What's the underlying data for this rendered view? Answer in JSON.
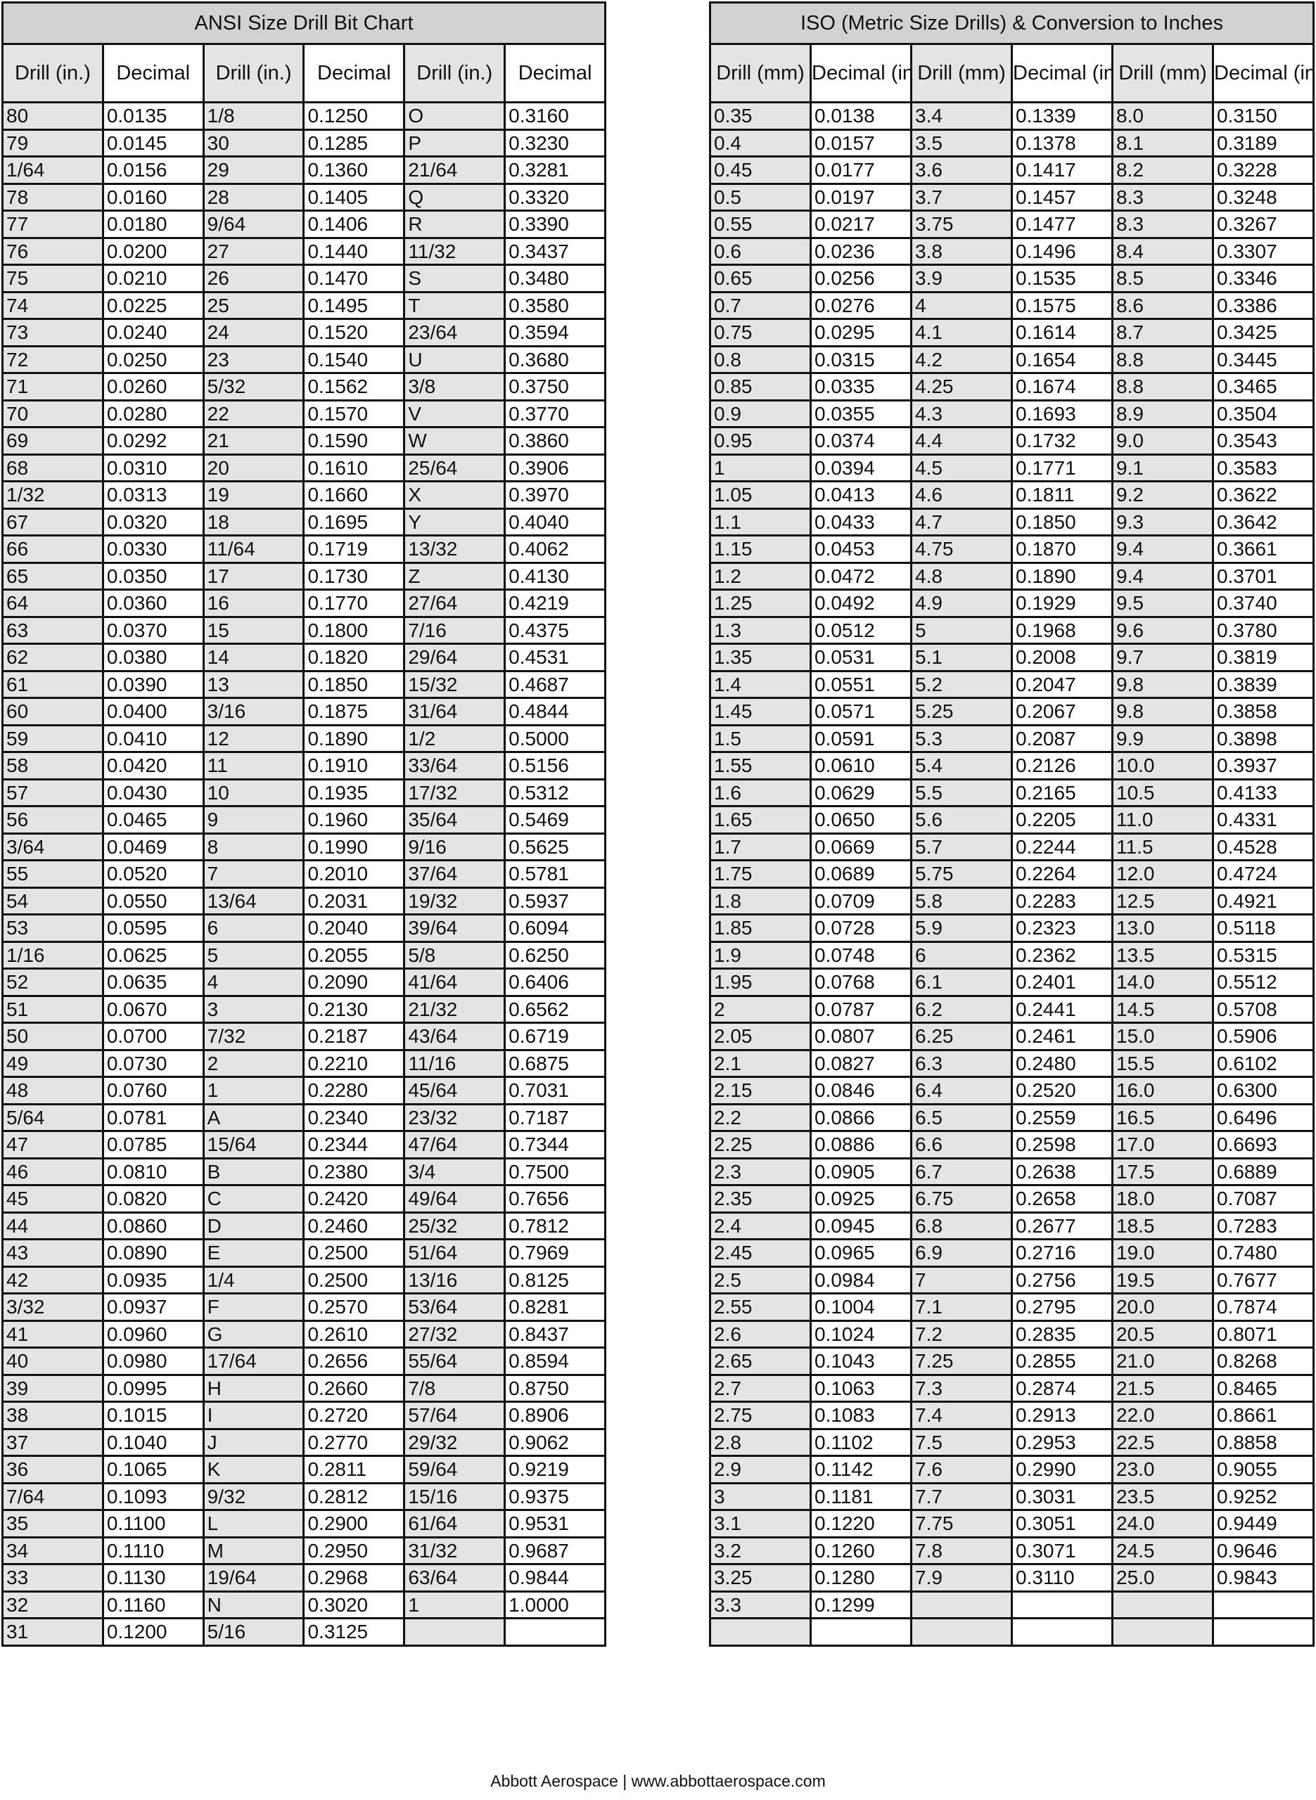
{
  "ansi": {
    "title": "ANSI Size Drill Bit Chart",
    "headers": [
      "Drill (in.)",
      "Decimal",
      "Drill (in.)",
      "Decimal",
      "Drill (in.)",
      "Decimal"
    ],
    "rows": [
      [
        "80",
        "0.0135",
        "1/8",
        "0.1250",
        "O",
        "0.3160"
      ],
      [
        "79",
        "0.0145",
        "30",
        "0.1285",
        "P",
        "0.3230"
      ],
      [
        "1/64",
        "0.0156",
        "29",
        "0.1360",
        "21/64",
        "0.3281"
      ],
      [
        "78",
        "0.0160",
        "28",
        "0.1405",
        "Q",
        "0.3320"
      ],
      [
        "77",
        "0.0180",
        "9/64",
        "0.1406",
        "R",
        "0.3390"
      ],
      [
        "76",
        "0.0200",
        "27",
        "0.1440",
        "11/32",
        "0.3437"
      ],
      [
        "75",
        "0.0210",
        "26",
        "0.1470",
        "S",
        "0.3480"
      ],
      [
        "74",
        "0.0225",
        "25",
        "0.1495",
        "T",
        "0.3580"
      ],
      [
        "73",
        "0.0240",
        "24",
        "0.1520",
        "23/64",
        "0.3594"
      ],
      [
        "72",
        "0.0250",
        "23",
        "0.1540",
        "U",
        "0.3680"
      ],
      [
        "71",
        "0.0260",
        "5/32",
        "0.1562",
        "3/8",
        "0.3750"
      ],
      [
        "70",
        "0.0280",
        "22",
        "0.1570",
        "V",
        "0.3770"
      ],
      [
        "69",
        "0.0292",
        "21",
        "0.1590",
        "W",
        "0.3860"
      ],
      [
        "68",
        "0.0310",
        "20",
        "0.1610",
        "25/64",
        "0.3906"
      ],
      [
        "1/32",
        "0.0313",
        "19",
        "0.1660",
        "X",
        "0.3970"
      ],
      [
        "67",
        "0.0320",
        "18",
        "0.1695",
        "Y",
        "0.4040"
      ],
      [
        "66",
        "0.0330",
        "11/64",
        "0.1719",
        "13/32",
        "0.4062"
      ],
      [
        "65",
        "0.0350",
        "17",
        "0.1730",
        "Z",
        "0.4130"
      ],
      [
        "64",
        "0.0360",
        "16",
        "0.1770",
        "27/64",
        "0.4219"
      ],
      [
        "63",
        "0.0370",
        "15",
        "0.1800",
        "7/16",
        "0.4375"
      ],
      [
        "62",
        "0.0380",
        "14",
        "0.1820",
        "29/64",
        "0.4531"
      ],
      [
        "61",
        "0.0390",
        "13",
        "0.1850",
        "15/32",
        "0.4687"
      ],
      [
        "60",
        "0.0400",
        "3/16",
        "0.1875",
        "31/64",
        "0.4844"
      ],
      [
        "59",
        "0.0410",
        "12",
        "0.1890",
        "1/2",
        "0.5000"
      ],
      [
        "58",
        "0.0420",
        "11",
        "0.1910",
        "33/64",
        "0.5156"
      ],
      [
        "57",
        "0.0430",
        "10",
        "0.1935",
        "17/32",
        "0.5312"
      ],
      [
        "56",
        "0.0465",
        "9",
        "0.1960",
        "35/64",
        "0.5469"
      ],
      [
        "3/64",
        "0.0469",
        "8",
        "0.1990",
        "9/16",
        "0.5625"
      ],
      [
        "55",
        "0.0520",
        "7",
        "0.2010",
        "37/64",
        "0.5781"
      ],
      [
        "54",
        "0.0550",
        "13/64",
        "0.2031",
        "19/32",
        "0.5937"
      ],
      [
        "53",
        "0.0595",
        "6",
        "0.2040",
        "39/64",
        "0.6094"
      ],
      [
        "1/16",
        "0.0625",
        "5",
        "0.2055",
        "5/8",
        "0.6250"
      ],
      [
        "52",
        "0.0635",
        "4",
        "0.2090",
        "41/64",
        "0.6406"
      ],
      [
        "51",
        "0.0670",
        "3",
        "0.2130",
        "21/32",
        "0.6562"
      ],
      [
        "50",
        "0.0700",
        "7/32",
        "0.2187",
        "43/64",
        "0.6719"
      ],
      [
        "49",
        "0.0730",
        "2",
        "0.2210",
        "11/16",
        "0.6875"
      ],
      [
        "48",
        "0.0760",
        "1",
        "0.2280",
        "45/64",
        "0.7031"
      ],
      [
        "5/64",
        "0.0781",
        "A",
        "0.2340",
        "23/32",
        "0.7187"
      ],
      [
        "47",
        "0.0785",
        "15/64",
        "0.2344",
        "47/64",
        "0.7344"
      ],
      [
        "46",
        "0.0810",
        "B",
        "0.2380",
        "3/4",
        "0.7500"
      ],
      [
        "45",
        "0.0820",
        "C",
        "0.2420",
        "49/64",
        "0.7656"
      ],
      [
        "44",
        "0.0860",
        "D",
        "0.2460",
        "25/32",
        "0.7812"
      ],
      [
        "43",
        "0.0890",
        "E",
        "0.2500",
        "51/64",
        "0.7969"
      ],
      [
        "42",
        "0.0935",
        "1/4",
        "0.2500",
        "13/16",
        "0.8125"
      ],
      [
        "3/32",
        "0.0937",
        "F",
        "0.2570",
        "53/64",
        "0.8281"
      ],
      [
        "41",
        "0.0960",
        "G",
        "0.2610",
        "27/32",
        "0.8437"
      ],
      [
        "40",
        "0.0980",
        "17/64",
        "0.2656",
        "55/64",
        "0.8594"
      ],
      [
        "39",
        "0.0995",
        "H",
        "0.2660",
        "7/8",
        "0.8750"
      ],
      [
        "38",
        "0.1015",
        "I",
        "0.2720",
        "57/64",
        "0.8906"
      ],
      [
        "37",
        "0.1040",
        "J",
        "0.2770",
        "29/32",
        "0.9062"
      ],
      [
        "36",
        "0.1065",
        "K",
        "0.2811",
        "59/64",
        "0.9219"
      ],
      [
        "7/64",
        "0.1093",
        "9/32",
        "0.2812",
        "15/16",
        "0.9375"
      ],
      [
        "35",
        "0.1100",
        "L",
        "0.2900",
        "61/64",
        "0.9531"
      ],
      [
        "34",
        "0.1110",
        "M",
        "0.2950",
        "31/32",
        "0.9687"
      ],
      [
        "33",
        "0.1130",
        "19/64",
        "0.2968",
        "63/64",
        "0.9844"
      ],
      [
        "32",
        "0.1160",
        "N",
        "0.3020",
        "1",
        "1.0000"
      ],
      [
        "31",
        "0.1200",
        "5/16",
        "0.3125",
        "",
        ""
      ]
    ]
  },
  "iso": {
    "title": "ISO (Metric Size Drills) & Conversion to Inches",
    "headers": [
      "Drill (mm)",
      "Decimal (in.)",
      "Drill (mm)",
      "Decimal (in.)",
      "Drill (mm)",
      "Decimal (in.)"
    ],
    "rows": [
      [
        "0.35",
        "0.0138",
        "3.4",
        "0.1339",
        "8.0",
        "0.3150"
      ],
      [
        "0.4",
        "0.0157",
        "3.5",
        "0.1378",
        "8.1",
        "0.3189"
      ],
      [
        "0.45",
        "0.0177",
        "3.6",
        "0.1417",
        "8.2",
        "0.3228"
      ],
      [
        "0.5",
        "0.0197",
        "3.7",
        "0.1457",
        "8.3",
        "0.3248"
      ],
      [
        "0.55",
        "0.0217",
        "3.75",
        "0.1477",
        "8.3",
        "0.3267"
      ],
      [
        "0.6",
        "0.0236",
        "3.8",
        "0.1496",
        "8.4",
        "0.3307"
      ],
      [
        "0.65",
        "0.0256",
        "3.9",
        "0.1535",
        "8.5",
        "0.3346"
      ],
      [
        "0.7",
        "0.0276",
        "4",
        "0.1575",
        "8.6",
        "0.3386"
      ],
      [
        "0.75",
        "0.0295",
        "4.1",
        "0.1614",
        "8.7",
        "0.3425"
      ],
      [
        "0.8",
        "0.0315",
        "4.2",
        "0.1654",
        "8.8",
        "0.3445"
      ],
      [
        "0.85",
        "0.0335",
        "4.25",
        "0.1674",
        "8.8",
        "0.3465"
      ],
      [
        "0.9",
        "0.0355",
        "4.3",
        "0.1693",
        "8.9",
        "0.3504"
      ],
      [
        "0.95",
        "0.0374",
        "4.4",
        "0.1732",
        "9.0",
        "0.3543"
      ],
      [
        "1",
        "0.0394",
        "4.5",
        "0.1771",
        "9.1",
        "0.3583"
      ],
      [
        "1.05",
        "0.0413",
        "4.6",
        "0.1811",
        "9.2",
        "0.3622"
      ],
      [
        "1.1",
        "0.0433",
        "4.7",
        "0.1850",
        "9.3",
        "0.3642"
      ],
      [
        "1.15",
        "0.0453",
        "4.75",
        "0.1870",
        "9.4",
        "0.3661"
      ],
      [
        "1.2",
        "0.0472",
        "4.8",
        "0.1890",
        "9.4",
        "0.3701"
      ],
      [
        "1.25",
        "0.0492",
        "4.9",
        "0.1929",
        "9.5",
        "0.3740"
      ],
      [
        "1.3",
        "0.0512",
        "5",
        "0.1968",
        "9.6",
        "0.3780"
      ],
      [
        "1.35",
        "0.0531",
        "5.1",
        "0.2008",
        "9.7",
        "0.3819"
      ],
      [
        "1.4",
        "0.0551",
        "5.2",
        "0.2047",
        "9.8",
        "0.3839"
      ],
      [
        "1.45",
        "0.0571",
        "5.25",
        "0.2067",
        "9.8",
        "0.3858"
      ],
      [
        "1.5",
        "0.0591",
        "5.3",
        "0.2087",
        "9.9",
        "0.3898"
      ],
      [
        "1.55",
        "0.0610",
        "5.4",
        "0.2126",
        "10.0",
        "0.3937"
      ],
      [
        "1.6",
        "0.0629",
        "5.5",
        "0.2165",
        "10.5",
        "0.4133"
      ],
      [
        "1.65",
        "0.0650",
        "5.6",
        "0.2205",
        "11.0",
        "0.4331"
      ],
      [
        "1.7",
        "0.0669",
        "5.7",
        "0.2244",
        "11.5",
        "0.4528"
      ],
      [
        "1.75",
        "0.0689",
        "5.75",
        "0.2264",
        "12.0",
        "0.4724"
      ],
      [
        "1.8",
        "0.0709",
        "5.8",
        "0.2283",
        "12.5",
        "0.4921"
      ],
      [
        "1.85",
        "0.0728",
        "5.9",
        "0.2323",
        "13.0",
        "0.5118"
      ],
      [
        "1.9",
        "0.0748",
        "6",
        "0.2362",
        "13.5",
        "0.5315"
      ],
      [
        "1.95",
        "0.0768",
        "6.1",
        "0.2401",
        "14.0",
        "0.5512"
      ],
      [
        "2",
        "0.0787",
        "6.2",
        "0.2441",
        "14.5",
        "0.5708"
      ],
      [
        "2.05",
        "0.0807",
        "6.25",
        "0.2461",
        "15.0",
        "0.5906"
      ],
      [
        "2.1",
        "0.0827",
        "6.3",
        "0.2480",
        "15.5",
        "0.6102"
      ],
      [
        "2.15",
        "0.0846",
        "6.4",
        "0.2520",
        "16.0",
        "0.6300"
      ],
      [
        "2.2",
        "0.0866",
        "6.5",
        "0.2559",
        "16.5",
        "0.6496"
      ],
      [
        "2.25",
        "0.0886",
        "6.6",
        "0.2598",
        "17.0",
        "0.6693"
      ],
      [
        "2.3",
        "0.0905",
        "6.7",
        "0.2638",
        "17.5",
        "0.6889"
      ],
      [
        "2.35",
        "0.0925",
        "6.75",
        "0.2658",
        "18.0",
        "0.7087"
      ],
      [
        "2.4",
        "0.0945",
        "6.8",
        "0.2677",
        "18.5",
        "0.7283"
      ],
      [
        "2.45",
        "0.0965",
        "6.9",
        "0.2716",
        "19.0",
        "0.7480"
      ],
      [
        "2.5",
        "0.0984",
        "7",
        "0.2756",
        "19.5",
        "0.7677"
      ],
      [
        "2.55",
        "0.1004",
        "7.1",
        "0.2795",
        "20.0",
        "0.7874"
      ],
      [
        "2.6",
        "0.1024",
        "7.2",
        "0.2835",
        "20.5",
        "0.8071"
      ],
      [
        "2.65",
        "0.1043",
        "7.25",
        "0.2855",
        "21.0",
        "0.8268"
      ],
      [
        "2.7",
        "0.1063",
        "7.3",
        "0.2874",
        "21.5",
        "0.8465"
      ],
      [
        "2.75",
        "0.1083",
        "7.4",
        "0.2913",
        "22.0",
        "0.8661"
      ],
      [
        "2.8",
        "0.1102",
        "7.5",
        "0.2953",
        "22.5",
        "0.8858"
      ],
      [
        "2.9",
        "0.1142",
        "7.6",
        "0.2990",
        "23.0",
        "0.9055"
      ],
      [
        "3",
        "0.1181",
        "7.7",
        "0.3031",
        "23.5",
        "0.9252"
      ],
      [
        "3.1",
        "0.1220",
        "7.75",
        "0.3051",
        "24.0",
        "0.9449"
      ],
      [
        "3.2",
        "0.1260",
        "7.8",
        "0.3071",
        "24.5",
        "0.9646"
      ],
      [
        "3.25",
        "0.1280",
        "7.9",
        "0.3110",
        "25.0",
        "0.9843"
      ],
      [
        "3.3",
        "0.1299",
        "",
        "",
        "",
        ""
      ],
      [
        "",
        "",
        "",
        "",
        "",
        ""
      ]
    ]
  },
  "footer": "Abbott Aerospace | www.abbottaerospace.com",
  "colors": {
    "title_bg": "#d3d2d2",
    "drill_column_bg": "#e4e4e4",
    "border": "#111111"
  }
}
